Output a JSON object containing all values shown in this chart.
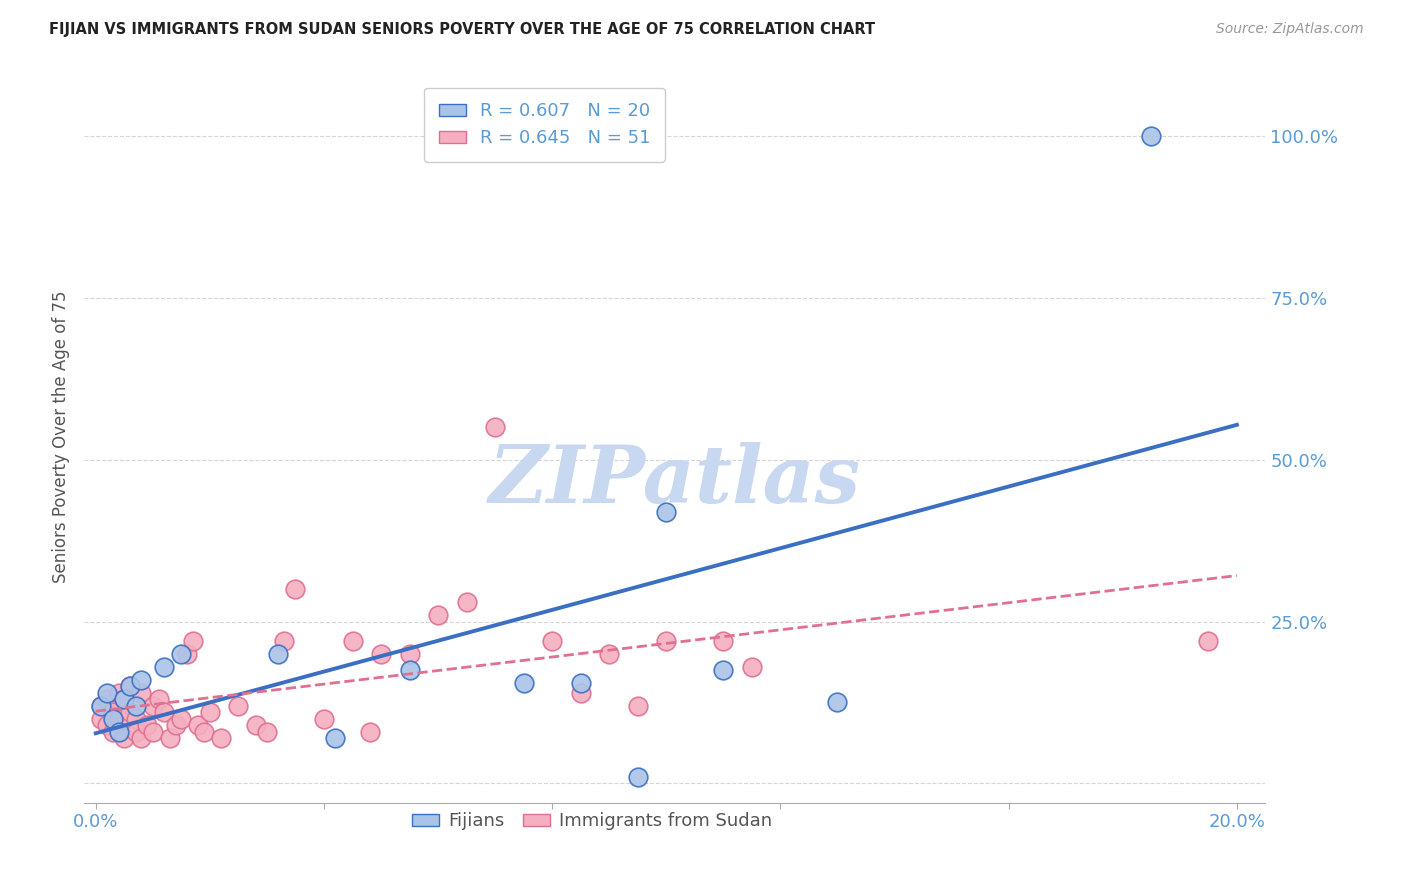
{
  "title": "FIJIAN VS IMMIGRANTS FROM SUDAN SENIORS POVERTY OVER THE AGE OF 75 CORRELATION CHART",
  "source": "Source: ZipAtlas.com",
  "xlim": [
    -0.002,
    0.205
  ],
  "ylim": [
    -0.03,
    1.1
  ],
  "fijians_R": 0.607,
  "fijians_N": 20,
  "sudan_R": 0.645,
  "sudan_N": 51,
  "fijians_color": "#aac4e8",
  "sudan_color": "#f4afc0",
  "fijians_line_color": "#3a6fc4",
  "sudan_line_color": "#e07090",
  "background_color": "#ffffff",
  "grid_color": "#cccccc",
  "axis_color": "#5b9bd5",
  "title_color": "#222222",
  "watermark_color": "#c8d8f0",
  "fijians_x": [
    0.001,
    0.002,
    0.003,
    0.004,
    0.005,
    0.006,
    0.007,
    0.008,
    0.012,
    0.015,
    0.032,
    0.042,
    0.055,
    0.075,
    0.085,
    0.095,
    0.1,
    0.11,
    0.13,
    0.185
  ],
  "fijians_y": [
    0.12,
    0.14,
    0.1,
    0.08,
    0.13,
    0.15,
    0.12,
    0.16,
    0.18,
    0.2,
    0.2,
    0.07,
    0.175,
    0.155,
    0.155,
    0.01,
    0.42,
    0.175,
    0.125,
    1.0
  ],
  "sudan_x": [
    0.001,
    0.001,
    0.002,
    0.002,
    0.003,
    0.003,
    0.004,
    0.004,
    0.005,
    0.005,
    0.006,
    0.006,
    0.007,
    0.007,
    0.008,
    0.008,
    0.009,
    0.01,
    0.01,
    0.011,
    0.012,
    0.013,
    0.014,
    0.015,
    0.016,
    0.017,
    0.018,
    0.019,
    0.02,
    0.022,
    0.025,
    0.028,
    0.03,
    0.033,
    0.035,
    0.04,
    0.045,
    0.048,
    0.05,
    0.055,
    0.06,
    0.065,
    0.07,
    0.08,
    0.085,
    0.09,
    0.095,
    0.1,
    0.11,
    0.115,
    0.195
  ],
  "sudan_y": [
    0.12,
    0.1,
    0.09,
    0.13,
    0.11,
    0.08,
    0.14,
    0.1,
    0.13,
    0.07,
    0.15,
    0.11,
    0.1,
    0.08,
    0.14,
    0.07,
    0.09,
    0.12,
    0.08,
    0.13,
    0.11,
    0.07,
    0.09,
    0.1,
    0.2,
    0.22,
    0.09,
    0.08,
    0.11,
    0.07,
    0.12,
    0.09,
    0.08,
    0.22,
    0.3,
    0.1,
    0.22,
    0.08,
    0.2,
    0.2,
    0.26,
    0.28,
    0.55,
    0.22,
    0.14,
    0.2,
    0.12,
    0.22,
    0.22,
    0.18,
    0.22
  ]
}
